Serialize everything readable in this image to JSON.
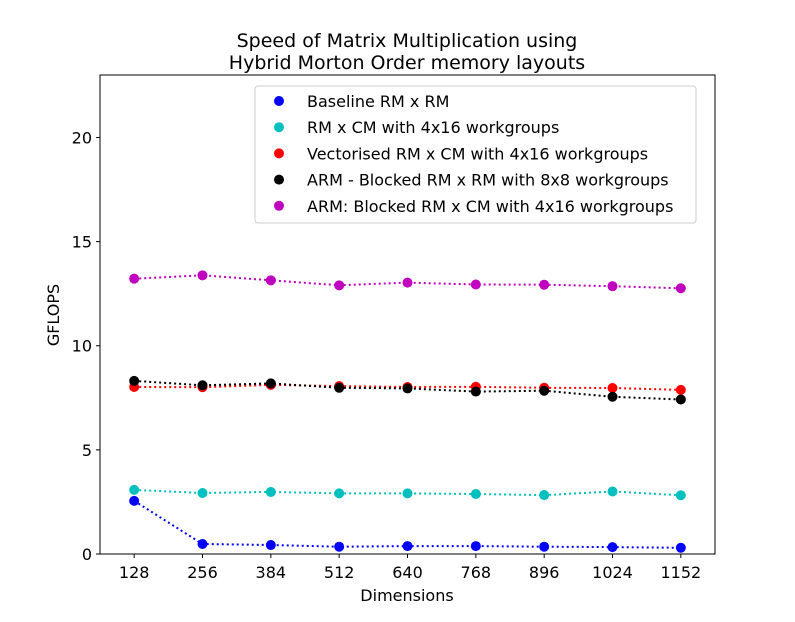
{
  "chart_data": {
    "type": "line",
    "title": [
      "Speed of Matrix Multiplication using",
      "Hybrid Morton Order memory layouts"
    ],
    "xlabel": "Dimensions",
    "ylabel": "GFLOPS",
    "x": [
      128,
      256,
      384,
      512,
      640,
      768,
      896,
      1024,
      1152
    ],
    "x_tick_labels": [
      "128",
      "256",
      "384",
      "512",
      "640",
      "768",
      "896",
      "1024",
      "1152"
    ],
    "xlim": [
      64,
      1216
    ],
    "ylim": [
      0,
      23
    ],
    "y_ticks": [
      0,
      5,
      10,
      15,
      20
    ],
    "y_tick_labels": [
      "0",
      "5",
      "10",
      "15",
      "20"
    ],
    "grid": false,
    "legend_position": "top-right",
    "series": [
      {
        "name": "Baseline RM x RM",
        "color": "#0000ff",
        "values": [
          2.55,
          0.48,
          0.43,
          0.35,
          0.38,
          0.38,
          0.35,
          0.33,
          0.3
        ]
      },
      {
        "name": "RM x CM with 4x16 workgroups",
        "color": "#00bfbf",
        "values": [
          3.08,
          2.93,
          2.98,
          2.91,
          2.91,
          2.88,
          2.83,
          3.0,
          2.82
        ]
      },
      {
        "name": "Vectorised RM x CM  with 4x16 workgroups",
        "color": "#ff0000",
        "values": [
          8.02,
          8.01,
          8.12,
          8.06,
          8.02,
          8.03,
          7.98,
          7.97,
          7.88
        ]
      },
      {
        "name": "ARM - Blocked RM x RM with 8x8 workgroups",
        "color": "#000000",
        "values": [
          8.31,
          8.1,
          8.19,
          7.98,
          7.95,
          7.8,
          7.84,
          7.55,
          7.42
        ]
      },
      {
        "name": "ARM: Blocked RM x CM with 4x16 workgroups",
        "color": "#bf00bf",
        "values": [
          13.22,
          13.38,
          13.14,
          12.9,
          13.03,
          12.94,
          12.93,
          12.86,
          12.76
        ]
      }
    ]
  }
}
